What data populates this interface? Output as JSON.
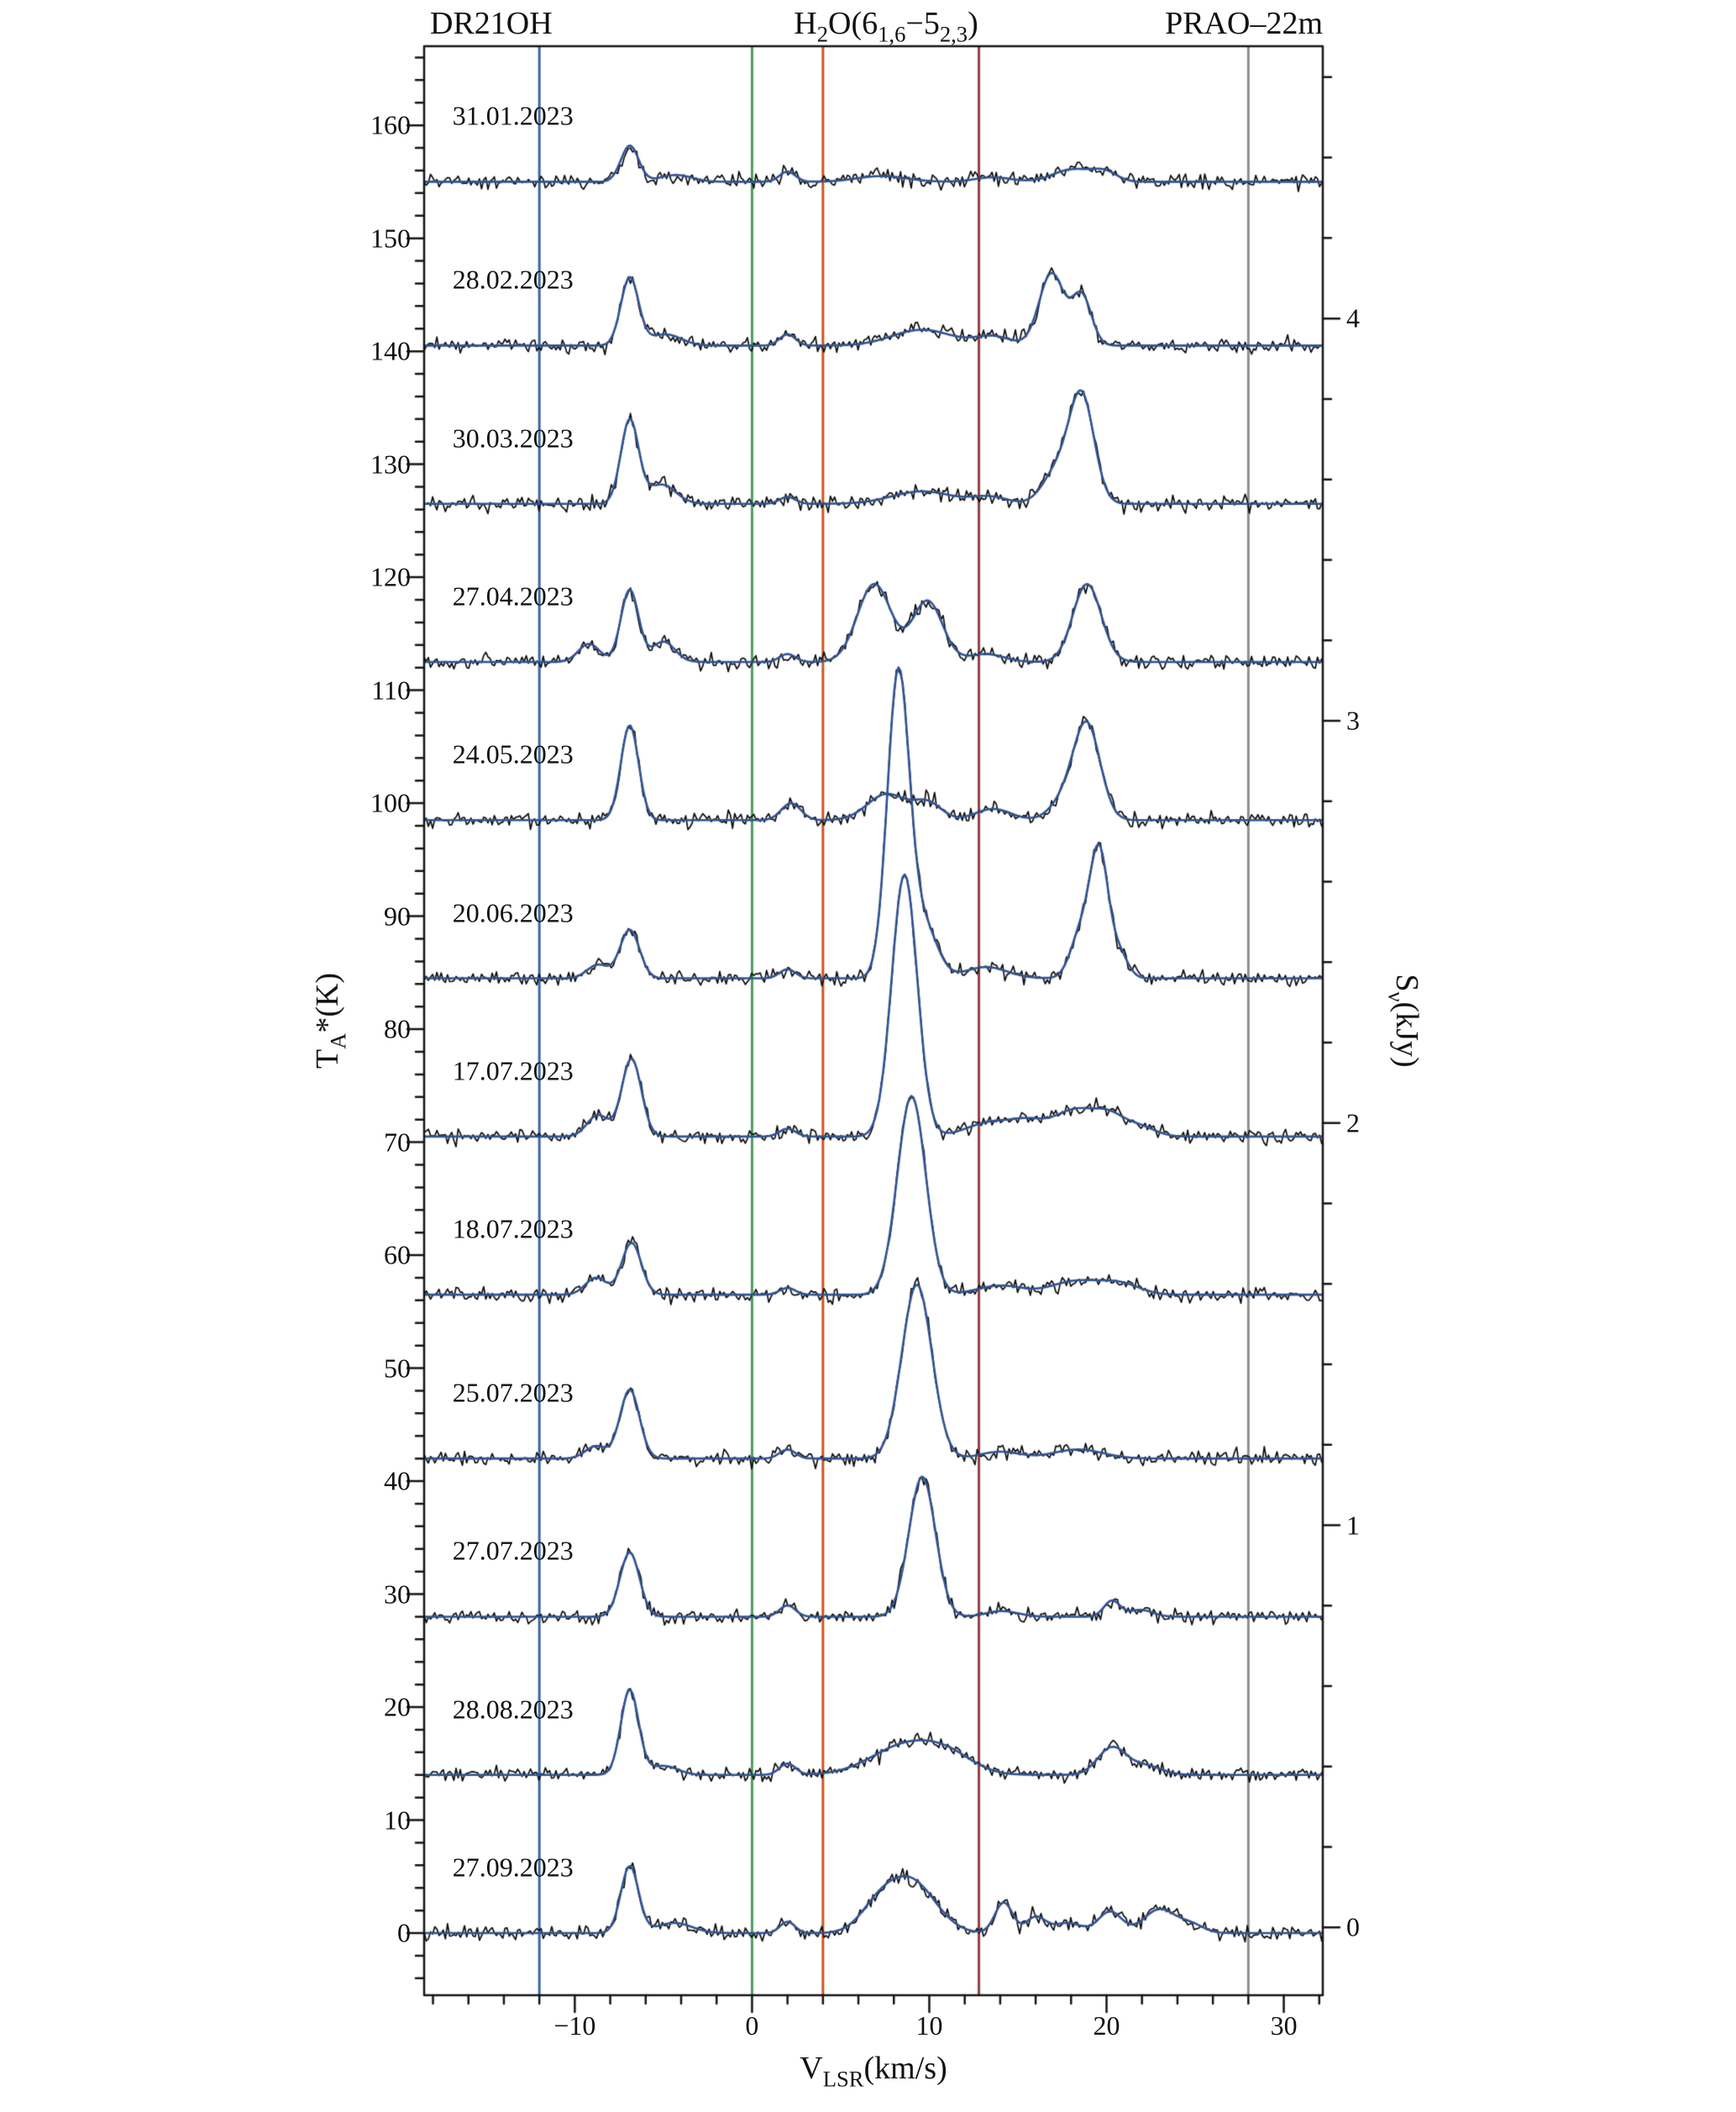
{
  "header": {
    "left": "DR21OH",
    "right": "PRAO–22m",
    "center_segments": [
      {
        "t": "H"
      },
      {
        "t": "2",
        "sub": true
      },
      {
        "t": "O(6"
      },
      {
        "t": "1,6",
        "sub": true
      },
      {
        "t": "−5"
      },
      {
        "t": "2,3",
        "sub": true
      },
      {
        "t": ")"
      }
    ]
  },
  "axes": {
    "xlabel_segments": [
      {
        "t": "V"
      },
      {
        "t": "LSR",
        "sub": true
      },
      {
        "t": "(km/s)"
      }
    ],
    "ylabel_left_segments": [
      {
        "t": "T"
      },
      {
        "t": "A",
        "sub": true
      },
      {
        "t": "*(K)"
      }
    ],
    "ylabel_right_segments": [
      {
        "t": "S"
      },
      {
        "t": "ν",
        "sub": true
      },
      {
        "t": "(kJy)"
      }
    ]
  },
  "chart_data": {
    "type": "line",
    "title": "H2O(6_1,6 − 5_2,3) maser spectra toward DR21OH, PRAO-22m, Jan–Sep 2023",
    "xlabel": "V_LSR (km/s)",
    "ylabel_left": "T_A* (K)",
    "ylabel_right": "S_nu (kJy)",
    "xlim": [
      -18.5,
      32.2
    ],
    "ylim": [
      -5.5,
      167
    ],
    "x_major_ticks": [
      -10,
      0,
      10,
      20,
      30
    ],
    "x_minor_step": 2,
    "y_major_ticks": [
      0,
      10,
      20,
      30,
      40,
      50,
      60,
      70,
      80,
      90,
      100,
      110,
      120,
      130,
      140,
      150,
      160
    ],
    "y_minor_step": 2,
    "right_ticks_kjy": [
      0,
      1,
      2,
      3,
      4
    ],
    "right_minor_step_kjy": 0.2,
    "kelvin_per_kjy": 35.6,
    "right_zero_offset_k": 0.5,
    "marker_lines": [
      {
        "x": -12,
        "color": "#3b66a3"
      },
      {
        "x": 0,
        "color": "#4e9d5c"
      },
      {
        "x": 4,
        "color": "#cf5420"
      },
      {
        "x": 12.8,
        "color": "#8f4140"
      },
      {
        "x": 28,
        "color": "#8f8f8f"
      }
    ],
    "curve_colors": {
      "data": "#0d0d0d",
      "fit": "#315393"
    },
    "noise_sigma_k": 0.32,
    "sample_step_kms": 0.12,
    "label_x_kms": -16.9,
    "label_dy_k": 5.8,
    "spectra": [
      {
        "date": "31.01.2023",
        "offset_k": 155,
        "components": [
          [
            -6.9,
            3.2,
            0.5
          ],
          [
            -4.3,
            0.6,
            0.9
          ],
          [
            2.0,
            0.9,
            0.45
          ],
          [
            7.3,
            0.5,
            1.4
          ],
          [
            13.6,
            0.4,
            1.0
          ],
          [
            18.1,
            1.1,
            1.1
          ],
          [
            19.9,
            0.8,
            0.7
          ]
        ]
      },
      {
        "date": "28.02.2023",
        "offset_k": 140.5,
        "components": [
          [
            -6.9,
            6.0,
            0.5
          ],
          [
            -4.9,
            1.0,
            0.9
          ],
          [
            2.0,
            1.0,
            0.45
          ],
          [
            9.6,
            1.4,
            1.7
          ],
          [
            13.6,
            0.8,
            1.0
          ],
          [
            16.9,
            6.4,
            0.7
          ],
          [
            18.6,
            4.4,
            0.55
          ]
        ]
      },
      {
        "date": "30.03.2023",
        "offset_k": 126.5,
        "components": [
          [
            -6.9,
            7.4,
            0.5
          ],
          [
            -5.1,
            1.7,
            0.8
          ],
          [
            2.0,
            0.6,
            0.45
          ],
          [
            9.6,
            1.1,
            1.7
          ],
          [
            13.4,
            0.6,
            1.0
          ],
          [
            17.2,
            2.8,
            0.8
          ],
          [
            18.6,
            9.4,
            0.7
          ]
        ]
      },
      {
        "date": "27.04.2023",
        "offset_k": 112.5,
        "components": [
          [
            -9.2,
            1.6,
            0.6
          ],
          [
            -6.9,
            6.4,
            0.5
          ],
          [
            -5.0,
            1.8,
            0.65
          ],
          [
            2.0,
            0.7,
            0.45
          ],
          [
            6.9,
            6.9,
            0.95
          ],
          [
            9.9,
            5.4,
            0.85
          ],
          [
            13.2,
            0.7,
            1.0
          ],
          [
            18.9,
            6.9,
            0.8
          ]
        ]
      },
      {
        "date": "24.05.2023",
        "offset_k": 98.5,
        "components": [
          [
            -6.9,
            8.4,
            0.5
          ],
          [
            2.2,
            1.5,
            0.55
          ],
          [
            7.6,
            2.3,
            1.1
          ],
          [
            9.9,
            1.5,
            0.8
          ],
          [
            13.6,
            1.0,
            1.0
          ],
          [
            17.6,
            1.6,
            0.8
          ],
          [
            18.9,
            8.3,
            0.75
          ]
        ]
      },
      {
        "date": "20.06.2023",
        "offset_k": 84.5,
        "components": [
          [
            -8.7,
            1.2,
            0.6
          ],
          [
            -6.9,
            4.3,
            0.55
          ],
          [
            2.0,
            0.8,
            0.45
          ],
          [
            8.25,
            26.8,
            0.62
          ],
          [
            9.7,
            4.6,
            0.75
          ],
          [
            13.2,
            1.0,
            1.2
          ],
          [
            18.6,
            4.2,
            0.6
          ],
          [
            19.6,
            10.6,
            0.5
          ],
          [
            20.7,
            2.2,
            0.5
          ]
        ]
      },
      {
        "date": "17.07.2023",
        "offset_k": 70.5,
        "components": [
          [
            -8.7,
            1.9,
            0.6
          ],
          [
            -6.8,
            6.9,
            0.55
          ],
          [
            2.0,
            0.7,
            0.45
          ],
          [
            8.6,
            23.2,
            0.72
          ],
          [
            13.6,
            1.3,
            1.4
          ],
          [
            15.6,
            0.9,
            0.9
          ],
          [
            18.3,
            2.4,
            1.3
          ],
          [
            20.2,
            1.3,
            0.8
          ],
          [
            21.8,
            0.9,
            0.9
          ]
        ]
      },
      {
        "date": "18.07.2023",
        "offset_k": 56.5,
        "components": [
          [
            -8.8,
            1.5,
            0.6
          ],
          [
            -6.8,
            4.6,
            0.55
          ],
          [
            2.0,
            0.6,
            0.45
          ],
          [
            9.0,
            17.6,
            0.8
          ],
          [
            14.0,
            0.8,
            1.3
          ],
          [
            18.3,
            1.2,
            1.4
          ],
          [
            20.8,
            0.9,
            1.1
          ]
        ]
      },
      {
        "date": "25.07.2023",
        "offset_k": 42,
        "components": [
          [
            -8.8,
            1.1,
            0.6
          ],
          [
            -6.9,
            6.1,
            0.55
          ],
          [
            2.0,
            0.8,
            0.45
          ],
          [
            9.3,
            15.4,
            0.85
          ],
          [
            14.0,
            0.6,
            1.1
          ],
          [
            18.4,
            0.8,
            1.4
          ]
        ]
      },
      {
        "date": "27.07.2023",
        "offset_k": 28,
        "components": [
          [
            -6.9,
            5.7,
            0.55
          ],
          [
            2.0,
            1.0,
            0.45
          ],
          [
            9.6,
            12.4,
            0.75
          ],
          [
            14.1,
            0.5,
            0.9
          ],
          [
            20.3,
            1.4,
            0.45
          ],
          [
            21.9,
            0.6,
            0.7
          ]
        ]
      },
      {
        "date": "28.08.2023",
        "offset_k": 14,
        "components": [
          [
            -6.9,
            7.5,
            0.5
          ],
          [
            -5.0,
            0.8,
            0.8
          ],
          [
            2.0,
            1.0,
            0.45
          ],
          [
            8.8,
            2.7,
            2.0
          ],
          [
            11.2,
            1.1,
            1.4
          ],
          [
            20.3,
            2.4,
            0.8
          ],
          [
            22.2,
            0.8,
            0.9
          ]
        ]
      },
      {
        "date": "27.09.2023",
        "offset_k": 0,
        "components": [
          [
            -6.9,
            5.9,
            0.5
          ],
          [
            -4.4,
            0.9,
            1.0
          ],
          [
            2.0,
            1.0,
            0.42
          ],
          [
            7.0,
            1.6,
            1.0
          ],
          [
            8.9,
            4.7,
            1.4
          ],
          [
            14.2,
            2.7,
            0.5
          ],
          [
            16.0,
            1.4,
            0.55
          ],
          [
            17.8,
            0.9,
            0.8
          ],
          [
            20.2,
            1.9,
            0.65
          ],
          [
            23.0,
            2.1,
            0.9
          ],
          [
            24.8,
            0.7,
            0.7
          ]
        ]
      }
    ]
  }
}
